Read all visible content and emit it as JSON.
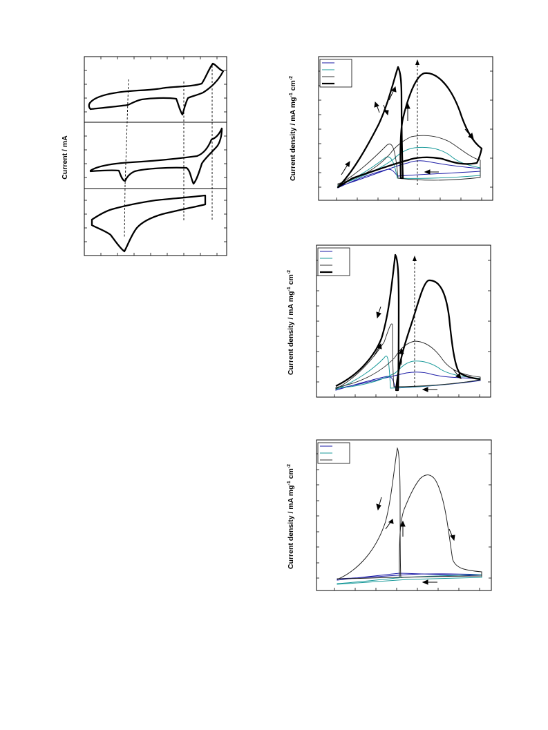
{
  "page": {
    "background": "#ffffff"
  },
  "left_figure": {
    "ylabel": "Current / mA",
    "panels": 3,
    "dashed_guides": 3
  },
  "right_figures": [
    {
      "ylabel_prefix": "Current density / mA mg",
      "ylabel_sup1": "-1",
      "ylabel_mid": " cm",
      "ylabel_sup2": "-2",
      "legend_colors": [
        "#1a1aa6",
        "#1a9a9a",
        "#333333",
        "#000000"
      ],
      "legend_text": [
        "",
        "",
        "",
        ""
      ]
    },
    {
      "ylabel_prefix": "Current density / mA mg",
      "ylabel_sup1": "-1",
      "ylabel_mid": " cm",
      "ylabel_sup2": "-2",
      "legend_colors": [
        "#1a1aa6",
        "#1a9a9a",
        "#333333",
        "#000000"
      ],
      "legend_text": [
        "",
        "",
        "",
        ""
      ]
    },
    {
      "ylabel_prefix": "Current density / mA mg",
      "ylabel_sup1": "-1",
      "ylabel_mid": " cm",
      "ylabel_sup2": "-2",
      "legend_colors": [
        "#1a1aa6",
        "#1a9a9a",
        "#333333"
      ],
      "legend_text": [
        "",
        "",
        ""
      ]
    }
  ],
  "chart_data": [
    {
      "type": "line",
      "title": "",
      "xlabel": "",
      "ylabel": "Current / mA",
      "series": [
        {
          "values": []
        },
        {
          "values": []
        },
        {
          "values": []
        }
      ]
    },
    {
      "type": "line",
      "title": "",
      "xlabel": "",
      "ylabel": "Current density / mA mg-1 cm-2",
      "series": [
        {
          "values": []
        },
        {
          "values": []
        },
        {
          "values": []
        },
        {
          "values": []
        }
      ]
    },
    {
      "type": "line",
      "title": "",
      "xlabel": "",
      "ylabel": "Current density / mA mg-1 cm-2",
      "series": [
        {
          "values": []
        },
        {
          "values": []
        },
        {
          "values": []
        },
        {
          "values": []
        }
      ]
    },
    {
      "type": "line",
      "title": "",
      "xlabel": "",
      "ylabel": "Current density / mA mg-1 cm-2",
      "series": [
        {
          "values": []
        },
        {
          "values": []
        },
        {
          "values": []
        }
      ]
    }
  ]
}
